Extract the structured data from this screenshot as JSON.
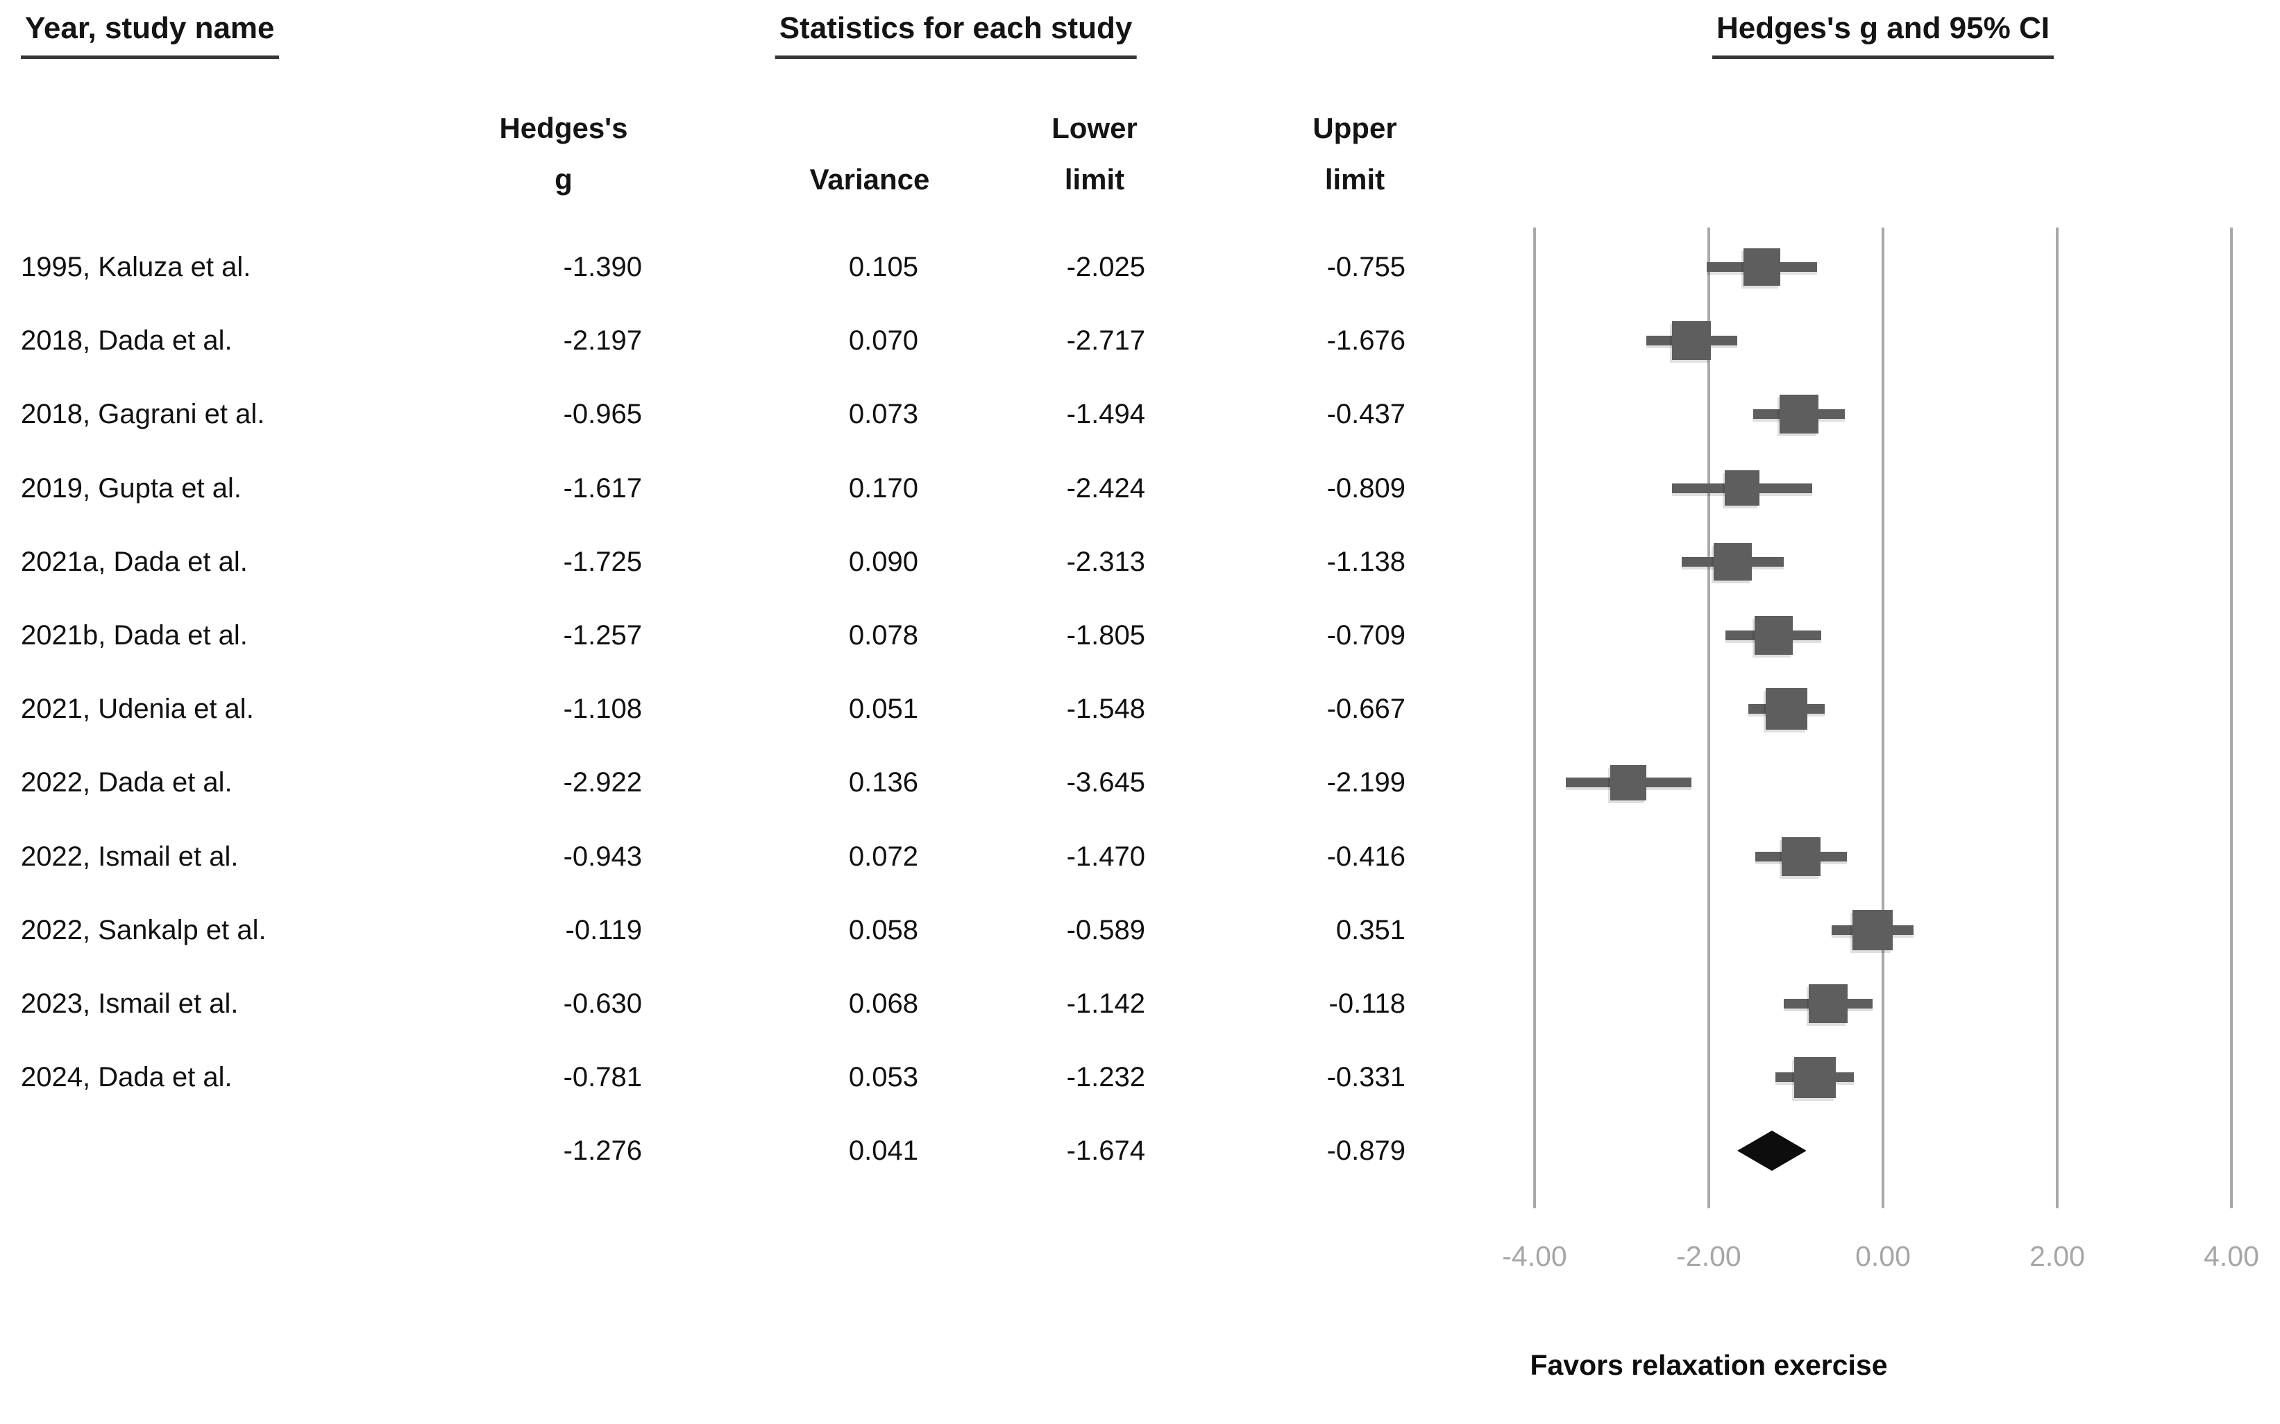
{
  "headers": {
    "study": "Year, study name",
    "stats": "Statistics for each study",
    "plot": "Hedges's g and 95% CI"
  },
  "subheaders": {
    "g_line1": "Hedges's",
    "g_line2": "g",
    "variance": "Variance",
    "lower_line1": "Lower",
    "lower_line2": "limit",
    "upper_line1": "Upper",
    "upper_line2": "limit"
  },
  "chart_data": {
    "type": "scatter",
    "variant": "forest-plot",
    "title": "Hedges's g and 95% CI",
    "effect_measure": "Hedges's g",
    "studies": [
      {
        "name": "1995, Kaluza et al.",
        "g": "-1.390",
        "variance": "0.105",
        "lower": "-2.025",
        "upper": "-0.755"
      },
      {
        "name": "2018, Dada et al.",
        "g": "-2.197",
        "variance": "0.070",
        "lower": "-2.717",
        "upper": "-1.676"
      },
      {
        "name": "2018, Gagrani et al.",
        "g": "-0.965",
        "variance": "0.073",
        "lower": "-1.494",
        "upper": "-0.437"
      },
      {
        "name": "2019, Gupta et al.",
        "g": "-1.617",
        "variance": "0.170",
        "lower": "-2.424",
        "upper": "-0.809"
      },
      {
        "name": "2021a, Dada et al.",
        "g": "-1.725",
        "variance": "0.090",
        "lower": "-2.313",
        "upper": "-1.138"
      },
      {
        "name": "2021b, Dada et al.",
        "g": "-1.257",
        "variance": "0.078",
        "lower": "-1.805",
        "upper": "-0.709"
      },
      {
        "name": "2021, Udenia et al.",
        "g": "-1.108",
        "variance": "0.051",
        "lower": "-1.548",
        "upper": "-0.667"
      },
      {
        "name": "2022, Dada et al.",
        "g": "-2.922",
        "variance": "0.136",
        "lower": "-3.645",
        "upper": "-2.199"
      },
      {
        "name": "2022, Ismail et al.",
        "g": "-0.943",
        "variance": "0.072",
        "lower": "-1.470",
        "upper": "-0.416"
      },
      {
        "name": "2022, Sankalp et al.",
        "g": "-0.119",
        "variance": "0.058",
        "lower": "-0.589",
        "upper": "0.351"
      },
      {
        "name": "2023, Ismail et al.",
        "g": "-0.630",
        "variance": "0.068",
        "lower": "-1.142",
        "upper": "-0.118"
      },
      {
        "name": "2024, Dada et al.",
        "g": "-0.781",
        "variance": "0.053",
        "lower": "-1.232",
        "upper": "-0.331"
      }
    ],
    "summary": {
      "name": "",
      "g": "-1.276",
      "variance": "0.041",
      "lower": "-1.674",
      "upper": "-0.879"
    },
    "x_axis": {
      "ticks": [
        -4,
        -2,
        0,
        2,
        4
      ],
      "tick_labels": [
        "-4.00",
        "-2.00",
        "0.00",
        "2.00",
        "4.00"
      ],
      "range": [
        -4.4,
        4.56
      ],
      "grid": true
    },
    "favors_label": "Favors relaxation exercise",
    "legend_position": "none",
    "colors": {
      "square": "#5e5e5e",
      "whisker": "#5e5e5e",
      "diamond": "#0d0d0d",
      "gridline": "#a9a9a9",
      "tick_label": "#a6a6a6",
      "text": "#111111"
    }
  }
}
